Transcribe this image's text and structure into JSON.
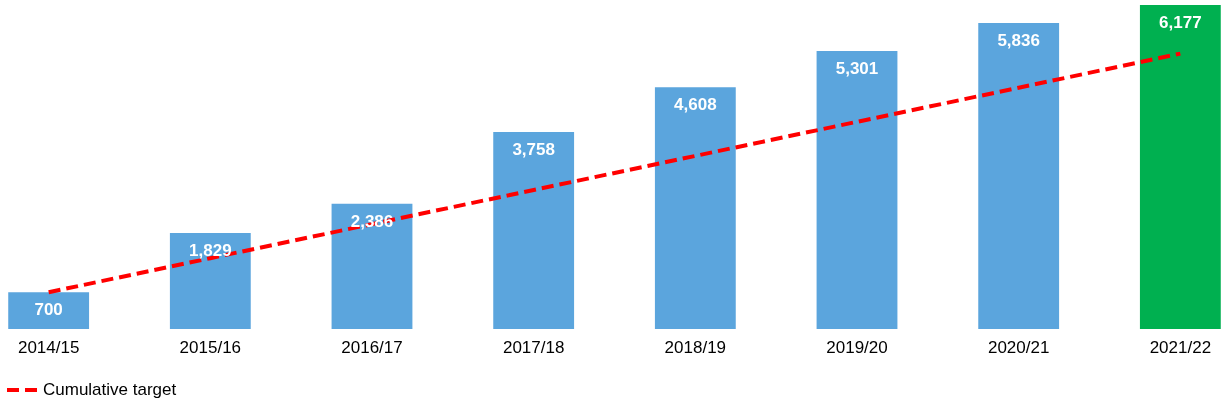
{
  "chart_data": {
    "type": "bar",
    "categories": [
      "2014/15",
      "2015/16",
      "2016/17",
      "2017/18",
      "2018/19",
      "2019/20",
      "2020/21",
      "2021/22"
    ],
    "series": [
      {
        "colors": [
          "#5ba5dd",
          "#5ba5dd",
          "#5ba5dd",
          "#5ba5dd",
          "#5ba5dd",
          "#5ba5dd",
          "#5ba5dd",
          "#00b050"
        ],
        "values": [
          700,
          1829,
          2386,
          3758,
          4608,
          5301,
          5836,
          6177
        ],
        "value_labels": [
          "700",
          "1,829",
          "2,386",
          "3,758",
          "4,608",
          "5,301",
          "5,836",
          "6,177"
        ]
      },
      {
        "type": "line",
        "name": "Cumulative target",
        "color": "#ff0000",
        "line_style": "dashed",
        "values": [
          700,
          1350,
          2000,
          2650,
          3300,
          3950,
          4600,
          5250
        ]
      }
    ],
    "legend": "bottom",
    "grid": false
  }
}
